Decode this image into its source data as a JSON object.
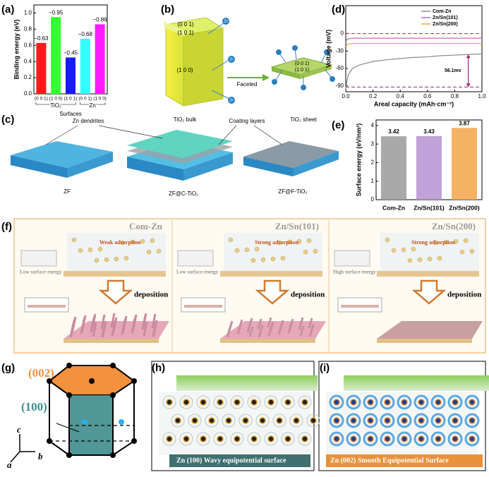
{
  "panel_labels": [
    "(a)",
    "(b)",
    "(c)",
    "(d)",
    "(e)",
    "(f)",
    "(g)",
    "(h)",
    "(i)"
  ],
  "chart_data": [
    {
      "type": "bar",
      "ylabel": "Binding energy (eV)",
      "xlabel": "Surfaces",
      "ylim": [
        0,
        1.1
      ],
      "yticks": [
        {
          "value": 0,
          "label": "0.0"
        },
        0.2,
        0.4,
        0.6,
        0.8,
        {
          "value": 1,
          "label": "1.0"
        }
      ],
      "groups": [
        {
          "name": "TiO₂",
          "categories": [
            "(0 0 1)",
            "(1 0 0)",
            "(1 0 1)"
          ],
          "values": [
            0.63,
            0.95,
            0.45
          ],
          "bar_labels": [
            "−0.63",
            "−0.95",
            "−0.45"
          ],
          "colors": [
            "#ff1a1a",
            "#33ff33",
            "#1a1aff"
          ]
        },
        {
          "name": "Zn",
          "categories": [
            "(0 0 1)",
            "(1 0 0)"
          ],
          "values": [
            0.68,
            0.86
          ],
          "bar_labels": [
            "−0.68",
            "−0.86"
          ],
          "colors": [
            "#33ffff",
            "#ff1aff"
          ]
        }
      ]
    },
    {
      "type": "line",
      "xlabel": "Areal capacity (mAh·cm⁻²)",
      "ylabel": "Voltage (mV)",
      "xlim": [
        0,
        1
      ],
      "ylim": [
        -100,
        48
      ],
      "xticks": [
        {
          "value": 0,
          "label": "0.0"
        },
        0.2,
        0.4,
        0.6,
        0.8,
        {
          "value": 1,
          "label": "1.0"
        }
      ],
      "yticks": [
        -90,
        -60,
        -30,
        0
      ],
      "x": [
        0,
        0.01,
        0.02,
        0.05,
        0.1,
        0.2,
        0.3,
        0.4,
        0.5,
        0.6,
        0.7,
        0.8,
        0.9,
        1
      ],
      "series": [
        {
          "name": "Com-Zn",
          "color": "#8c8c8c",
          "values": [
            -95,
            -80,
            -70,
            -60,
            -54,
            -48,
            -45,
            -43,
            -41,
            -40,
            -38,
            -37,
            -36,
            -35
          ]
        },
        {
          "name": "Zn/Sn(101)",
          "color": "#a874c8",
          "values": [
            -14,
            -10,
            -9,
            -8,
            -8,
            -8,
            -8,
            -8,
            -8,
            -8,
            -8,
            -8,
            -8,
            -8
          ]
        },
        {
          "name": "Zn/Sn(200)",
          "color": "#f4a742",
          "values": [
            -22,
            -19,
            -18,
            -17,
            -17,
            -17,
            -17,
            -17,
            -17,
            -17,
            -17,
            -17,
            -17,
            -17
          ]
        }
      ],
      "reference_lines": [
        0,
        -92
      ],
      "annotation": "56.1mv"
    },
    {
      "type": "bar",
      "ylabel": "Surface energy (eV/nm²)",
      "ylim": [
        0,
        4.3
      ],
      "yticks": [
        0,
        1,
        2,
        3,
        4
      ],
      "categories": [
        "Com-Zn",
        "Zn/Sn(101)",
        "Zn/Sn(200)"
      ],
      "values": [
        3.42,
        3.43,
        3.87
      ],
      "colors": [
        "#9a9a9a",
        "#b690d0",
        "#f3a54a"
      ]
    }
  ],
  "panel_b": {
    "facets": [
      "(0 0 1)",
      "(1 0 1)",
      "(1 0 0)"
    ],
    "ion": "Zn",
    "arrow": "Faceted",
    "bulk": "TiO₂ bulk",
    "sheet": "TiO₂ sheet"
  },
  "panel_c": {
    "callouts": [
      "Zn dendrites",
      "Coating layers"
    ],
    "samples": [
      "ZF",
      "ZF@C-TiO₂",
      "ZF@F-TiO₂"
    ]
  },
  "panel_f": {
    "panels": [
      {
        "title": "Com-Zn",
        "adsorption": "Weak adsorption",
        "surface_energy": "Low surface energy",
        "step": "deposition"
      },
      {
        "title": "Zn/Sn(101)",
        "adsorption": "Strong adsorption",
        "surface_energy": "Low surface energy",
        "step": "deposition"
      },
      {
        "title": "Zn/Sn(200)",
        "adsorption": "Strong adsorption",
        "surface_energy": "High surface energy",
        "step": "deposition"
      }
    ]
  },
  "panel_g": {
    "planes": [
      "(002)",
      "(100)"
    ],
    "axes": [
      "a",
      "b",
      "c"
    ]
  },
  "panel_h": {
    "caption": "Zn (100)    Wavy equipotential surface"
  },
  "panel_i": {
    "caption": "Zn (002)  Smooth Equipotential Surface"
  }
}
